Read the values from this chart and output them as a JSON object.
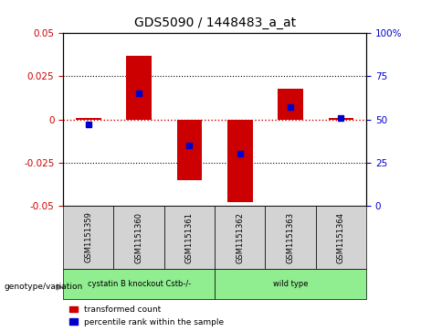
{
  "title": "GDS5090 / 1448483_a_at",
  "samples": [
    "GSM1151359",
    "GSM1151360",
    "GSM1151361",
    "GSM1151362",
    "GSM1151363",
    "GSM1151364"
  ],
  "transformed_counts": [
    0.001,
    0.037,
    -0.035,
    -0.048,
    0.018,
    0.001
  ],
  "percentile_ranks": [
    47,
    65,
    35,
    30,
    57,
    51
  ],
  "group1_label": "cystatin B knockout Cstb-/-",
  "group2_label": "wild type",
  "group_color": "#90EE90",
  "sample_bg_color": "#d3d3d3",
  "ylim_left": [
    -0.05,
    0.05
  ],
  "ylim_right": [
    0,
    100
  ],
  "yticks_left": [
    -0.05,
    -0.025,
    0,
    0.025,
    0.05
  ],
  "yticks_right": [
    0,
    25,
    50,
    75,
    100
  ],
  "left_color": "#cc0000",
  "right_color": "#0000cc",
  "zero_line_color": "#cc0000",
  "bar_width": 0.5,
  "blue_marker_size": 5,
  "legend_red_label": "transformed count",
  "legend_blue_label": "percentile rank within the sample",
  "genotype_label": "genotype/variation"
}
